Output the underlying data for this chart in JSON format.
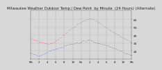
{
  "title": "Milwaukee Weather Outdoor Temp / Dew Point  by Minute  (24 Hours) (Alternate)",
  "title_fontsize": 3.8,
  "title_color": "#222222",
  "bg_color": "#d8d8d8",
  "axes_bg_color": "#d8d8d8",
  "grid_color": "#888888",
  "temp_color": "#dd0000",
  "dew_color": "#0000cc",
  "ylabel_color": "#111111",
  "xlabel_color": "#111111",
  "ylim": [
    10,
    72
  ],
  "yticks": [
    20,
    30,
    40,
    50,
    60
  ],
  "xlabel_fontsize": 2.8,
  "ylabel_fontsize": 3.2,
  "temp_x": [
    0,
    20,
    40,
    60,
    80,
    100,
    120,
    140,
    160,
    180,
    200,
    220,
    240,
    260,
    280,
    300,
    320,
    340,
    360,
    380,
    400,
    420,
    440,
    460,
    480,
    500,
    520,
    540,
    560,
    580,
    600,
    620,
    640,
    660,
    680,
    700,
    720,
    740,
    760,
    780,
    800,
    820,
    840,
    860,
    880,
    900,
    920,
    940,
    960,
    980,
    1000,
    1020,
    1040,
    1060,
    1080,
    1100,
    1120,
    1140,
    1160,
    1180,
    1200,
    1220,
    1240,
    1260,
    1280,
    1300,
    1320,
    1340,
    1360,
    1380,
    1400,
    1420,
    1440
  ],
  "temp_y": [
    36,
    35,
    34,
    34,
    33,
    33,
    32,
    32,
    31,
    31,
    30,
    30,
    29,
    29,
    30,
    30,
    31,
    32,
    33,
    34,
    35,
    37,
    38,
    40,
    41,
    43,
    44,
    46,
    47,
    49,
    50,
    51,
    52,
    54,
    55,
    56,
    57,
    58,
    59,
    59,
    60,
    60,
    61,
    61,
    60,
    60,
    59,
    58,
    57,
    56,
    55,
    53,
    52,
    51,
    50,
    49,
    47,
    46,
    45,
    44,
    43,
    42,
    41,
    40,
    39,
    38,
    37,
    36,
    35,
    34,
    33,
    32,
    31
  ],
  "dew_x": [
    0,
    20,
    40,
    60,
    80,
    100,
    120,
    140,
    160,
    180,
    200,
    220,
    240,
    260,
    280,
    300,
    320,
    340,
    360,
    380,
    400,
    420,
    440,
    460,
    480,
    500,
    520,
    540,
    560,
    580,
    600,
    620,
    640,
    660,
    680,
    700,
    720,
    740,
    760,
    780,
    800,
    820,
    840,
    860,
    880,
    900,
    920,
    940,
    960,
    980,
    1000,
    1020,
    1040,
    1060,
    1080,
    1100,
    1120,
    1140,
    1160,
    1180,
    1200,
    1220,
    1240,
    1260,
    1280,
    1300,
    1320,
    1340,
    1360,
    1380,
    1400,
    1420,
    1440
  ],
  "dew_y": [
    18,
    17,
    16,
    16,
    15,
    14,
    14,
    14,
    15,
    16,
    17,
    18,
    19,
    20,
    20,
    21,
    22,
    22,
    23,
    23,
    24,
    25,
    25,
    26,
    27,
    27,
    28,
    28,
    29,
    29,
    29,
    30,
    31,
    31,
    30,
    31,
    32,
    33,
    33,
    32,
    33,
    34,
    34,
    33,
    33,
    32,
    31,
    31,
    30,
    30,
    29,
    29,
    28,
    28,
    27,
    27,
    26,
    26,
    25,
    24,
    24,
    23,
    22,
    21,
    20,
    20,
    19,
    18,
    17,
    17,
    16,
    15,
    15
  ],
  "xtick_positions": [
    0,
    120,
    240,
    360,
    480,
    600,
    720,
    840,
    960,
    1080,
    1200,
    1320,
    1440
  ],
  "xtick_labels": [
    "Mn",
    "2",
    "4",
    "6",
    "8",
    "10",
    "Nn",
    "2",
    "4",
    "6",
    "8",
    "10",
    "Mn"
  ],
  "dot_size": 0.5
}
